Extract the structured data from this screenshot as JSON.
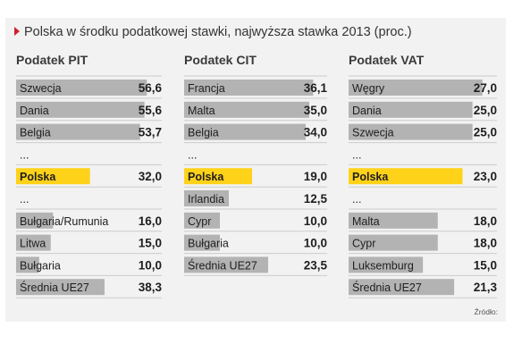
{
  "colors": {
    "panel_bg": "#f2f2f2",
    "bar_gray": "#b3b3b3",
    "highlight": "#ffd21a",
    "title_marker": "#d0202e",
    "text": "#1e1e1e",
    "divider": "#cccccc"
  },
  "chart_data": {
    "type": "bar",
    "title": "Polska w środku podatkowej stawki, najwyższa stawka 2013 (proc.)",
    "source_label": "Źródło:",
    "panels": [
      {
        "title": "Podatek PIT",
        "xlim": [
          0,
          60
        ],
        "rows": [
          {
            "label": "Szwecja",
            "value": 56.6,
            "value_label": "56,6"
          },
          {
            "label": "Dania",
            "value": 55.6,
            "value_label": "55,6"
          },
          {
            "label": "Belgia",
            "value": 53.7,
            "value_label": "53,7"
          },
          {
            "label": "...",
            "value": null,
            "value_label": ""
          },
          {
            "label": "Polska",
            "value": 32.0,
            "value_label": "32,0",
            "highlight": true
          },
          {
            "label": "...",
            "value": null,
            "value_label": ""
          },
          {
            "label": "Bułgaria/Rumunia",
            "value": 16.0,
            "value_label": "16,0"
          },
          {
            "label": "Litwa",
            "value": 15.0,
            "value_label": "15,0"
          },
          {
            "label": "Bułgaria",
            "value": 10.0,
            "value_label": "10,0"
          },
          {
            "label": "Średnia UE27",
            "value": 38.3,
            "value_label": "38,3"
          }
        ]
      },
      {
        "title": "Podatek CIT",
        "xlim": [
          0,
          38
        ],
        "rows": [
          {
            "label": "Francja",
            "value": 36.1,
            "value_label": "36,1"
          },
          {
            "label": "Malta",
            "value": 35.0,
            "value_label": "35,0"
          },
          {
            "label": "Belgia",
            "value": 34.0,
            "value_label": "34,0"
          },
          {
            "label": "...",
            "value": null,
            "value_label": ""
          },
          {
            "label": "Polska",
            "value": 19.0,
            "value_label": "19,0",
            "highlight": true
          },
          {
            "label": "Irlandia",
            "value": 12.5,
            "value_label": "12,5"
          },
          {
            "label": "Cypr",
            "value": 10.0,
            "value_label": "10,0"
          },
          {
            "label": "Bułgaria",
            "value": 10.0,
            "value_label": "10,0"
          },
          {
            "label": "Średnia UE27",
            "value": 23.5,
            "value_label": "23,5"
          }
        ]
      },
      {
        "title": "Podatek VAT",
        "xlim": [
          0,
          28.5
        ],
        "rows": [
          {
            "label": "Węgry",
            "value": 27.0,
            "value_label": "27,0"
          },
          {
            "label": "Dania",
            "value": 25.0,
            "value_label": "25,0"
          },
          {
            "label": "Szwecja",
            "value": 25.0,
            "value_label": "25,0"
          },
          {
            "label": "...",
            "value": null,
            "value_label": ""
          },
          {
            "label": "Polska",
            "value": 23.0,
            "value_label": "23,0",
            "highlight": true
          },
          {
            "label": "...",
            "value": null,
            "value_label": ""
          },
          {
            "label": "Malta",
            "value": 18.0,
            "value_label": "18,0"
          },
          {
            "label": "Cypr",
            "value": 18.0,
            "value_label": "18,0"
          },
          {
            "label": "Luksemburg",
            "value": 15.0,
            "value_label": "15,0"
          },
          {
            "label": "Średnia UE27",
            "value": 21.3,
            "value_label": "21,3"
          }
        ]
      }
    ]
  }
}
